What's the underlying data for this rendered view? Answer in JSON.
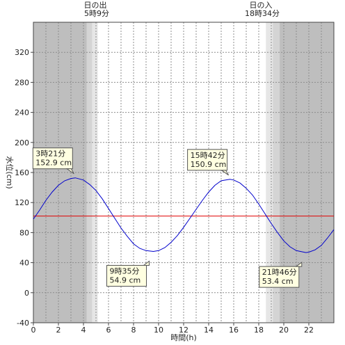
{
  "chart_data": {
    "type": "line",
    "title": "",
    "xlabel": "時間(h)",
    "ylabel": "水位(cm)",
    "xlim": [
      0,
      24
    ],
    "ylim": [
      -40,
      360
    ],
    "x_ticks": [
      0,
      2,
      4,
      6,
      8,
      10,
      12,
      14,
      16,
      18,
      20,
      22
    ],
    "y_ticks": [
      -40,
      0,
      40,
      80,
      120,
      160,
      200,
      240,
      280,
      320
    ],
    "grid": true,
    "reference_level": 102,
    "reference_color": "#e00000",
    "line_color": "#0000cc",
    "sunrise": {
      "label": "日の出",
      "time": "5時9分",
      "hour": 5.15
    },
    "sunset": {
      "label": "日の入",
      "time": "18時34分",
      "hour": 18.57
    },
    "extrema": [
      {
        "time": "3時21分",
        "level": "152.9 cm",
        "hour": 3.35,
        "value": 152.9,
        "kind": "high"
      },
      {
        "time": "9時35分",
        "level": "54.9 cm",
        "hour": 9.583,
        "value": 54.9,
        "kind": "low"
      },
      {
        "time": "15時42分",
        "level": "150.9 cm",
        "hour": 15.7,
        "value": 150.9,
        "kind": "high"
      },
      {
        "time": "21時46分",
        "level": "53.4 cm",
        "hour": 21.767,
        "value": 53.4,
        "kind": "low"
      }
    ],
    "series": [
      {
        "x": [
          0,
          0.5,
          1,
          1.5,
          2,
          2.5,
          3,
          3.35,
          4,
          4.5,
          5,
          5.5,
          6,
          6.5,
          7,
          7.5,
          8,
          8.5,
          9,
          9.583,
          10,
          10.5,
          11,
          11.5,
          12,
          12.5,
          13,
          13.5,
          14,
          14.5,
          15,
          15.7,
          16,
          16.5,
          17,
          17.5,
          18,
          18.5,
          19,
          19.5,
          20,
          20.5,
          21,
          21.767,
          22,
          22.5,
          23,
          23.5,
          24
        ],
        "values": [
          98,
          110,
          123,
          134,
          143,
          149,
          152,
          152.9,
          150,
          144,
          136,
          125,
          112,
          99,
          86,
          75,
          65,
          59,
          56,
          54.9,
          56,
          60,
          67,
          76,
          87,
          99,
          111,
          123,
          134,
          143,
          149,
          150.9,
          150,
          146,
          139,
          130,
          118,
          105,
          92,
          80,
          69,
          61,
          56,
          53.4,
          54,
          57,
          63,
          73,
          84
        ]
      }
    ]
  }
}
